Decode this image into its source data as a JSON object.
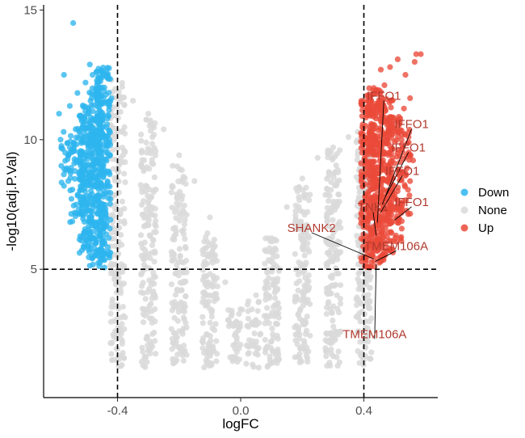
{
  "chart_data": {
    "type": "scatter",
    "title": "",
    "xlabel": "logFC",
    "ylabel": "-log10(adj.P.Val)",
    "xlim": [
      -0.64,
      0.64
    ],
    "ylim": [
      0.05,
      15.2
    ],
    "x_ticks": [
      -0.4,
      0.0,
      0.4
    ],
    "x_tick_labels": [
      "-0.4",
      "0.0",
      "0.4"
    ],
    "y_ticks": [
      5,
      10,
      15
    ],
    "y_tick_labels": [
      "5",
      "10",
      "15"
    ],
    "thresholds": {
      "logFC": [
        -0.4,
        0.4
      ],
      "neg_log10_adjP": 5
    },
    "grid": false,
    "legend": {
      "position": "right",
      "entries": [
        {
          "label": "Down",
          "color": "#2db5ee"
        },
        {
          "label": "None",
          "color": "#d9d9d9"
        },
        {
          "label": "Up",
          "color": "#ea4a3a"
        }
      ]
    },
    "colors": {
      "Down": "#2db5ee",
      "None": "#d9d9d9",
      "Up": "#ea4a3a",
      "label_text": "#b03a2e"
    },
    "series": [
      {
        "name": "Down",
        "points": [
          [
            -0.544,
            14.5
          ],
          [
            -0.574,
            12.5
          ],
          [
            -0.49,
            12.9
          ],
          [
            -0.481,
            12.5
          ],
          [
            -0.504,
            12.2
          ],
          [
            -0.45,
            12.4
          ],
          [
            -0.53,
            11.8
          ],
          [
            -0.46,
            11.7
          ],
          [
            -0.42,
            11.6
          ],
          [
            -0.59,
            11.0
          ],
          [
            -0.555,
            11.3
          ],
          [
            -0.575,
            10.3
          ],
          [
            -0.585,
            10.0
          ],
          [
            -0.57,
            9.5
          ],
          [
            -0.565,
            8.9
          ],
          [
            -0.56,
            8.4
          ],
          [
            -0.52,
            7.8
          ],
          [
            -0.5,
            7.3
          ],
          [
            -0.49,
            6.9
          ],
          [
            -0.5,
            6.1
          ],
          [
            -0.475,
            5.8
          ],
          [
            -0.462,
            5.5
          ],
          [
            -0.49,
            6.4
          ],
          [
            -0.52,
            9.0
          ]
        ],
        "cloud": [
          {
            "x": -0.448,
            "ymin": 5.05,
            "ymax": 12.8,
            "n": 240
          },
          {
            "x": -0.47,
            "ymin": 5.1,
            "ymax": 12.0,
            "n": 200
          },
          {
            "x": -0.5,
            "ymin": 5.6,
            "ymax": 11.4,
            "n": 150
          },
          {
            "x": -0.53,
            "ymin": 6.8,
            "ymax": 10.6,
            "n": 70
          },
          {
            "x": -0.56,
            "ymin": 8.0,
            "ymax": 10.0,
            "n": 25
          }
        ]
      },
      {
        "name": "None",
        "points": [
          [
            -0.42,
            12.3
          ],
          [
            -0.35,
            11.5
          ],
          [
            -0.3,
            11.0
          ],
          [
            -0.25,
            10.4
          ],
          [
            -0.2,
            9.4
          ],
          [
            -0.15,
            8.4
          ],
          [
            -0.1,
            7.0
          ],
          [
            -0.05,
            4.5
          ],
          [
            0.05,
            4.0
          ],
          [
            0.1,
            6.2
          ],
          [
            0.15,
            7.4
          ],
          [
            0.2,
            8.5
          ],
          [
            0.25,
            9.3
          ],
          [
            0.3,
            9.7
          ],
          [
            0.35,
            10.1
          ],
          [
            0.38,
            10.3
          ],
          [
            -0.38,
            3.2
          ],
          [
            0.38,
            3.2
          ],
          [
            -0.2,
            2.0
          ],
          [
            0.2,
            2.0
          ]
        ],
        "cloud": [
          {
            "x": -0.4,
            "ymin": 1.2,
            "ymax": 12.2,
            "n": 180
          },
          {
            "x": -0.3,
            "ymin": 1.2,
            "ymax": 10.8,
            "n": 170
          },
          {
            "x": -0.2,
            "ymin": 1.2,
            "ymax": 9.0,
            "n": 140
          },
          {
            "x": -0.1,
            "ymin": 1.2,
            "ymax": 6.4,
            "n": 110
          },
          {
            "x": -0.02,
            "ymin": 1.2,
            "ymax": 3.5,
            "n": 40
          },
          {
            "x": 0.04,
            "ymin": 1.2,
            "ymax": 3.8,
            "n": 40
          },
          {
            "x": 0.1,
            "ymin": 1.2,
            "ymax": 6.2,
            "n": 110
          },
          {
            "x": 0.2,
            "ymin": 1.2,
            "ymax": 8.2,
            "n": 140
          },
          {
            "x": 0.3,
            "ymin": 1.2,
            "ymax": 9.6,
            "n": 170
          },
          {
            "x": 0.4,
            "ymin": 1.2,
            "ymax": 10.2,
            "n": 180
          }
        ]
      },
      {
        "name": "Up",
        "points": [
          [
            0.585,
            13.3
          ],
          [
            0.57,
            13.3
          ],
          [
            0.565,
            13.0
          ],
          [
            0.51,
            13.1
          ],
          [
            0.485,
            12.8
          ],
          [
            0.467,
            12.1
          ],
          [
            0.455,
            12.7
          ],
          [
            0.535,
            12.5
          ],
          [
            0.55,
            11.6
          ],
          [
            0.53,
            11.2
          ],
          [
            0.43,
            11.9
          ],
          [
            0.41,
            11.7
          ],
          [
            0.545,
            10.1
          ],
          [
            0.56,
            9.2
          ],
          [
            0.54,
            8.9
          ],
          [
            0.55,
            8.4
          ],
          [
            0.515,
            7.4
          ],
          [
            0.51,
            6.9
          ],
          [
            0.49,
            6.4
          ],
          [
            0.47,
            6.0
          ],
          [
            0.455,
            5.5
          ],
          [
            0.5,
            7.9
          ]
        ],
        "cloud": [
          {
            "x": 0.415,
            "ymin": 5.05,
            "ymax": 11.5,
            "n": 220
          },
          {
            "x": 0.44,
            "ymin": 5.05,
            "ymax": 12.0,
            "n": 200
          },
          {
            "x": 0.47,
            "ymin": 5.2,
            "ymax": 11.6,
            "n": 170
          },
          {
            "x": 0.5,
            "ymin": 6.0,
            "ymax": 11.0,
            "n": 110
          },
          {
            "x": 0.53,
            "ymin": 7.0,
            "ymax": 10.4,
            "n": 45
          }
        ]
      }
    ],
    "annotations": [
      {
        "text": "IFFO1",
        "label_x": 0.465,
        "label_y": 11.7,
        "point_x": 0.444,
        "point_y": 6.8
      },
      {
        "text": "IFFO1",
        "label_x": 0.555,
        "label_y": 10.6,
        "point_x": 0.46,
        "point_y": 7.5
      },
      {
        "text": "IFFO1",
        "label_x": 0.545,
        "label_y": 9.7,
        "point_x": 0.47,
        "point_y": 7.8
      },
      {
        "text": "IFFO1",
        "label_x": 0.525,
        "label_y": 8.8,
        "point_x": 0.455,
        "point_y": 7.2
      },
      {
        "text": "IFFO1",
        "label_x": 0.555,
        "label_y": 7.6,
        "point_x": 0.5,
        "point_y": 6.9
      },
      {
        "text": "TNK1",
        "label_x": 0.43,
        "label_y": 7.4,
        "point_x": 0.44,
        "point_y": 6.3
      },
      {
        "text": "SHANK2",
        "label_x": 0.23,
        "label_y": 6.6,
        "point_x": 0.432,
        "point_y": 5.4
      },
      {
        "text": "TMEM106A",
        "label_x": 0.505,
        "label_y": 5.9,
        "point_x": 0.437,
        "point_y": 5.3
      },
      {
        "text": "TMEM106A",
        "label_x": 0.435,
        "label_y": 2.5,
        "point_x": 0.44,
        "point_y": 5.2
      }
    ]
  }
}
